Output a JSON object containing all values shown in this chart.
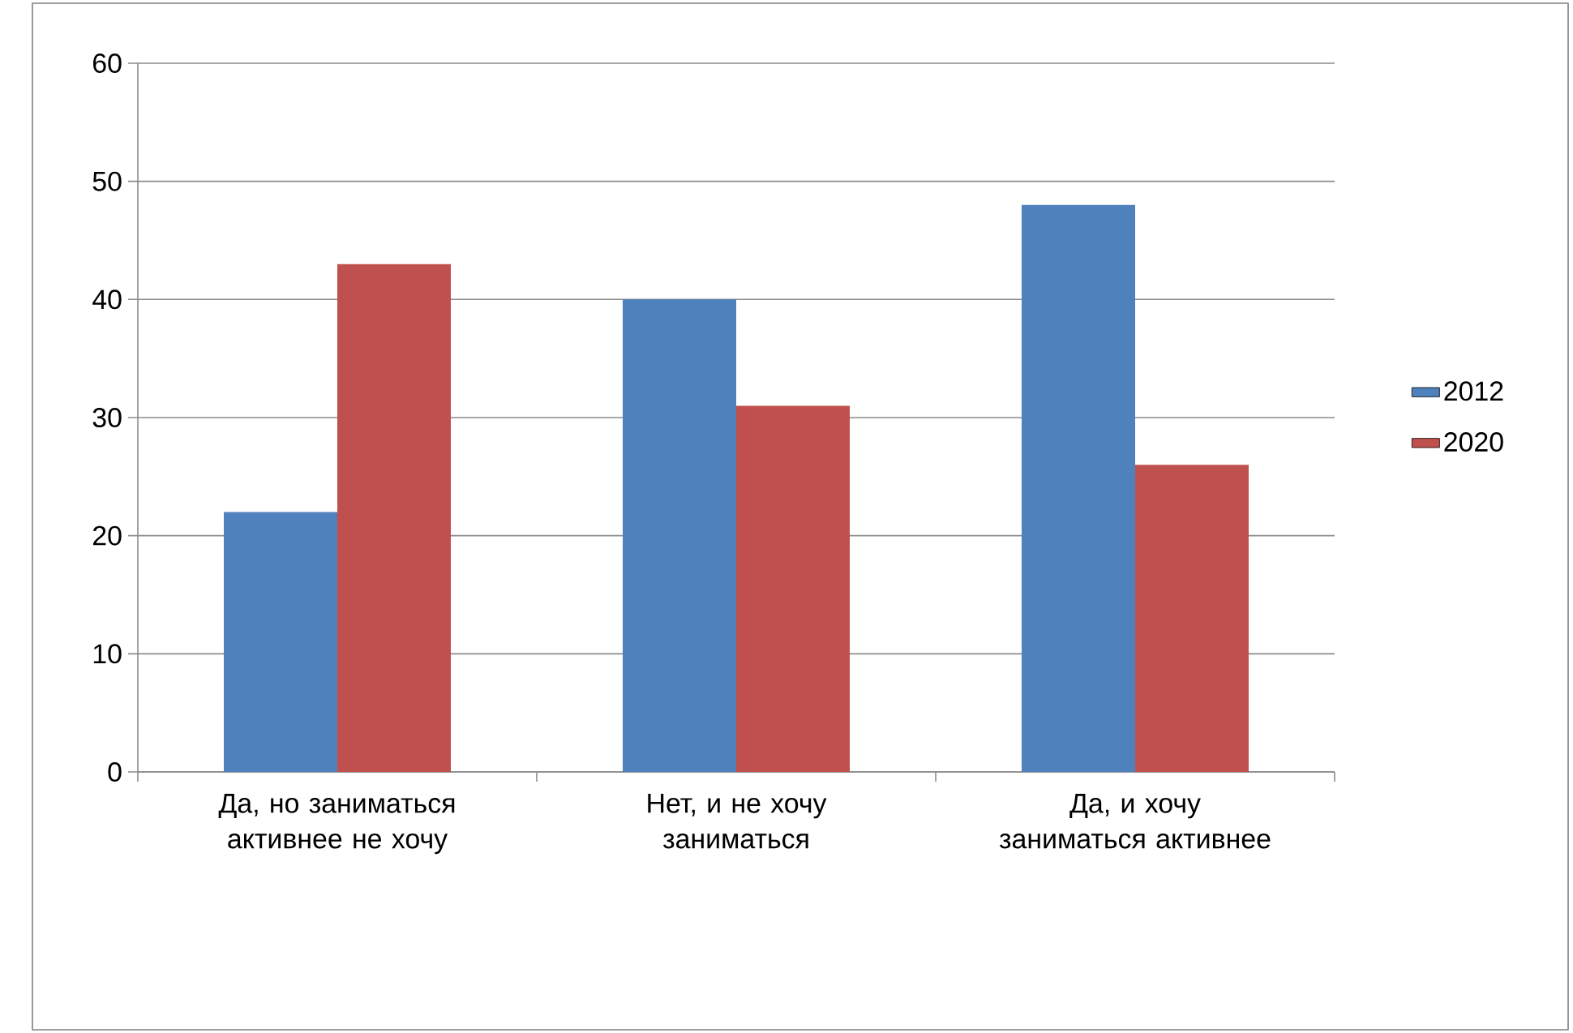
{
  "chart_data": {
    "type": "bar",
    "categories": [
      "Да, но заниматься активнее не хочу",
      "Нет, и не хочу заниматься",
      "Да, и хочу заниматься активнее"
    ],
    "series": [
      {
        "name": "2012",
        "color": "#4f81bd",
        "values": [
          22,
          40,
          48
        ]
      },
      {
        "name": "2020",
        "color": "#c0504d",
        "values": [
          43,
          31,
          26
        ]
      }
    ],
    "ylim": [
      0,
      60
    ],
    "yticks": [
      0,
      10,
      20,
      30,
      40,
      50,
      60
    ],
    "grid": "y",
    "legend": "right"
  }
}
